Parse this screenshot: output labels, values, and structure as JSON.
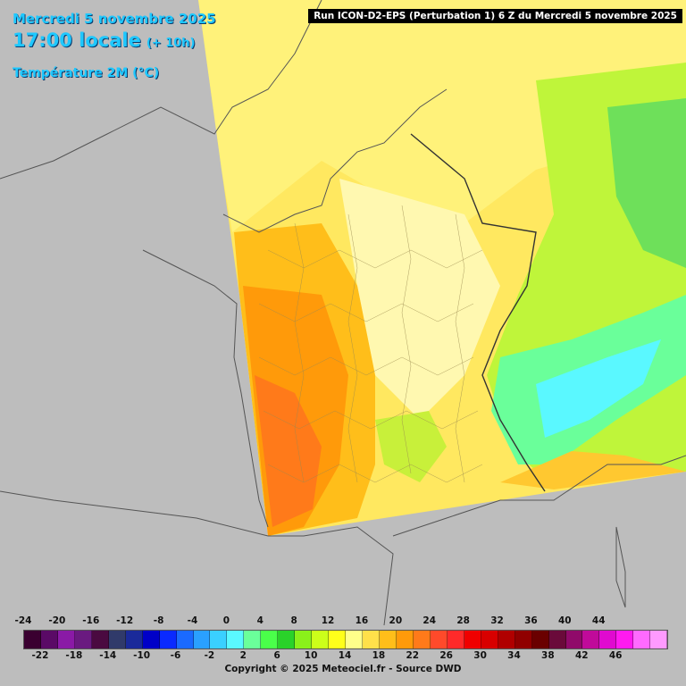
{
  "header": {
    "date": "Mercredi 5 novembre 2025",
    "time": "17:00 locale",
    "lead": "(+ 10h)",
    "parameter": "Température 2M (°C)"
  },
  "run_title": "Run ICON-D2-EPS (Perturbation 1) 6 Z du Mercredi 5 novembre 2025",
  "legend": {
    "top_labels": [
      "-24",
      "-20",
      "-16",
      "-12",
      "-8",
      "-4",
      "0",
      "4",
      "8",
      "12",
      "16",
      "20",
      "24",
      "28",
      "32",
      "36",
      "40",
      "44"
    ],
    "bottom_labels": [
      "-22",
      "-18",
      "-14",
      "-10",
      "-6",
      "-2",
      "2",
      "6",
      "10",
      "14",
      "18",
      "22",
      "26",
      "30",
      "34",
      "38",
      "42",
      "46"
    ],
    "colors": [
      "#3a0030",
      "#5a0a66",
      "#8a1aa6",
      "#6a1a80",
      "#4a0a40",
      "#303a6a",
      "#1a2a9a",
      "#0000c8",
      "#0a2aff",
      "#1a6aff",
      "#2aa0ff",
      "#3ad0ff",
      "#5af8ff",
      "#6aff9a",
      "#4aff4a",
      "#2ad22a",
      "#8af01a",
      "#ccff1a",
      "#ffff1a",
      "#ffff8a",
      "#ffe04a",
      "#ffbe1a",
      "#ff9a0a",
      "#ff7a1a",
      "#ff4a2a",
      "#ff2a2a",
      "#f00000",
      "#d80000",
      "#b00000",
      "#900000",
      "#6a0000",
      "#6a0a3a",
      "#900a6a",
      "#c00a9a",
      "#e00ad0",
      "#ff1af0",
      "#ff6aff",
      "#ff9aff"
    ]
  },
  "copyright": "Copyright © 2025 Meteociel.fr - Source DWD"
}
